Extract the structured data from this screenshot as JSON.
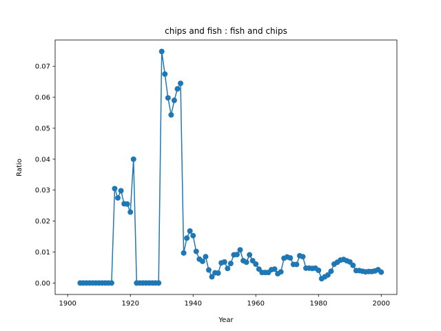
{
  "chart_data": {
    "type": "line",
    "title": "chips and fish : fish and chips",
    "xlabel": "Year",
    "ylabel": "Ratio",
    "xlim": [
      1896,
      2005
    ],
    "ylim": [
      -0.0037,
      0.0785
    ],
    "xticks": [
      1900,
      1920,
      1940,
      1960,
      1980,
      2000
    ],
    "yticks": [
      0.0,
      0.01,
      0.02,
      0.03,
      0.04,
      0.05,
      0.06,
      0.07
    ],
    "ytick_labels": [
      "0.00",
      "0.01",
      "0.02",
      "0.03",
      "0.04",
      "0.05",
      "0.06",
      "0.07"
    ],
    "grid": false,
    "series": [
      {
        "color": "#1f77b4",
        "marker": "circle",
        "x": [
          1904,
          1905,
          1906,
          1907,
          1908,
          1909,
          1910,
          1911,
          1912,
          1913,
          1914,
          1915,
          1916,
          1917,
          1918,
          1919,
          1920,
          1921,
          1922,
          1923,
          1924,
          1925,
          1926,
          1927,
          1928,
          1929,
          1930,
          1931,
          1932,
          1933,
          1934,
          1935,
          1936,
          1937,
          1938,
          1939,
          1940,
          1941,
          1942,
          1943,
          1944,
          1945,
          1946,
          1947,
          1948,
          1949,
          1950,
          1951,
          1952,
          1953,
          1954,
          1955,
          1956,
          1957,
          1958,
          1959,
          1960,
          1961,
          1962,
          1963,
          1964,
          1965,
          1966,
          1967,
          1968,
          1969,
          1970,
          1971,
          1972,
          1973,
          1974,
          1975,
          1976,
          1977,
          1978,
          1979,
          1980,
          1981,
          1982,
          1983,
          1984,
          1985,
          1986,
          1987,
          1988,
          1989,
          1990,
          1991,
          1992,
          1993,
          1994,
          1995,
          1996,
          1997,
          1998,
          1999,
          2000
        ],
        "y": [
          0,
          0,
          0,
          0,
          0,
          0,
          0,
          0,
          0,
          0,
          0,
          0.0305,
          0.0275,
          0.0298,
          0.0256,
          0.0255,
          0.0229,
          0.04,
          0,
          0,
          0,
          0,
          0,
          0,
          0,
          0,
          0.0748,
          0.0675,
          0.0598,
          0.0543,
          0.059,
          0.0627,
          0.0645,
          0.0097,
          0.0145,
          0.0168,
          0.0153,
          0.0102,
          0.0077,
          0.007,
          0.0085,
          0.0042,
          0.002,
          0.0033,
          0.0032,
          0.0065,
          0.0068,
          0.0047,
          0.0063,
          0.0091,
          0.0092,
          0.0107,
          0.0072,
          0.0067,
          0.0091,
          0.0072,
          0.0061,
          0.0045,
          0.0034,
          0.0034,
          0.0034,
          0.0043,
          0.0045,
          0.003,
          0.0036,
          0.008,
          0.0084,
          0.0081,
          0.006,
          0.006,
          0.0088,
          0.0085,
          0.0048,
          0.0048,
          0.0047,
          0.0048,
          0.0041,
          0.0014,
          0.002,
          0.0026,
          0.0038,
          0.0061,
          0.0067,
          0.0074,
          0.0076,
          0.0072,
          0.0068,
          0.0057,
          0.004,
          0.004,
          0.0038,
          0.0036,
          0.0037,
          0.0037,
          0.0039,
          0.0043,
          0.0035
        ]
      }
    ]
  }
}
